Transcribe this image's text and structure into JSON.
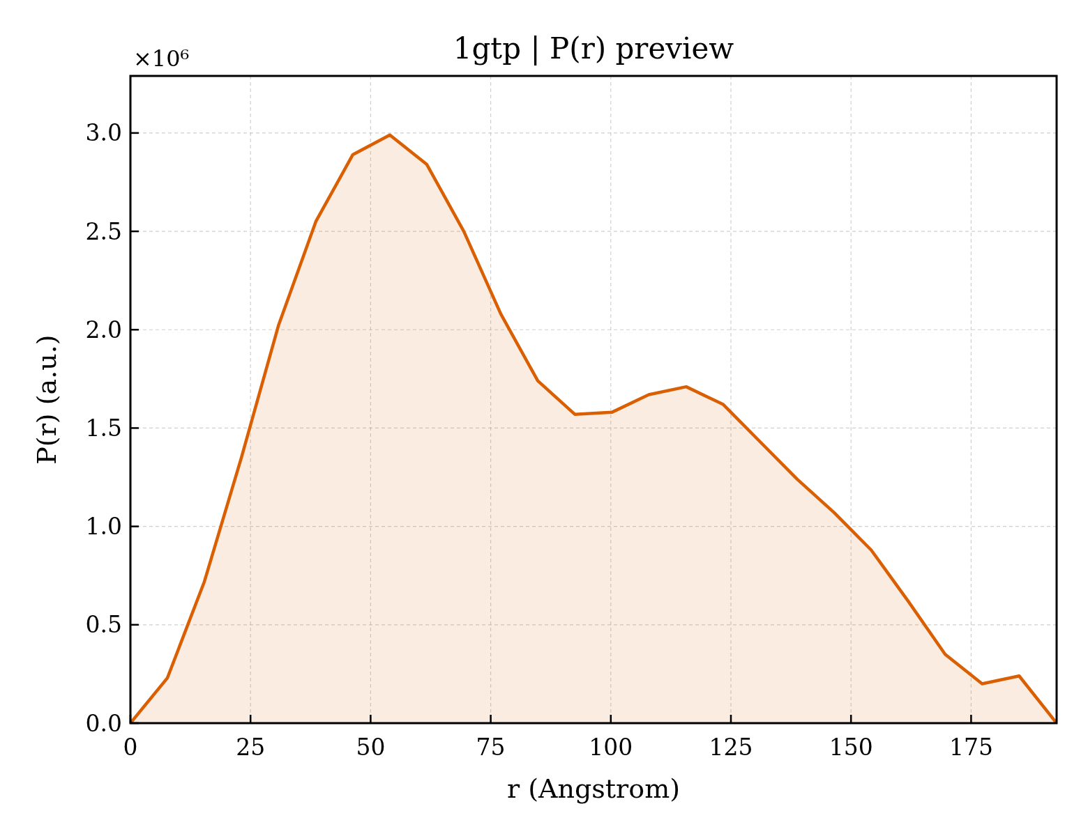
{
  "chart_data": {
    "type": "area",
    "title": "1gtp | P(r) preview",
    "xlabel": "r (Angstrom)",
    "ylabel": "P(r) (a.u.)",
    "annotations": [
      "×10⁶"
    ],
    "x": [
      0,
      7.7,
      15.4,
      23.1,
      30.8,
      38.6,
      46.3,
      54.0,
      61.7,
      69.4,
      77.1,
      84.8,
      92.5,
      100.2,
      107.9,
      115.7,
      123.4,
      131.1,
      138.8,
      146.5,
      154.2,
      161.9,
      169.6,
      177.3,
      185.0,
      192.8
    ],
    "series": [
      {
        "color": "#d95f02",
        "values": [
          0,
          0.23,
          0.72,
          1.35,
          2.02,
          2.55,
          2.89,
          2.99,
          2.84,
          2.5,
          2.08,
          1.74,
          1.57,
          1.58,
          1.67,
          1.71,
          1.62,
          1.43,
          1.24,
          1.07,
          0.88,
          0.62,
          0.35,
          0.2,
          0.24,
          0
        ]
      }
    ],
    "xlim": [
      0,
      192.8
    ],
    "ylim": [
      0,
      3.29
    ],
    "xticks": [
      0,
      25,
      50,
      75,
      100,
      125,
      150,
      175
    ],
    "yticks": [
      {
        "value": 0,
        "label": "0.0"
      },
      0.5,
      {
        "value": 1,
        "label": "1.0"
      },
      1.5,
      {
        "value": 2,
        "label": "2.0"
      },
      2.5,
      {
        "value": 3,
        "label": "3.0"
      }
    ],
    "grid": true
  }
}
